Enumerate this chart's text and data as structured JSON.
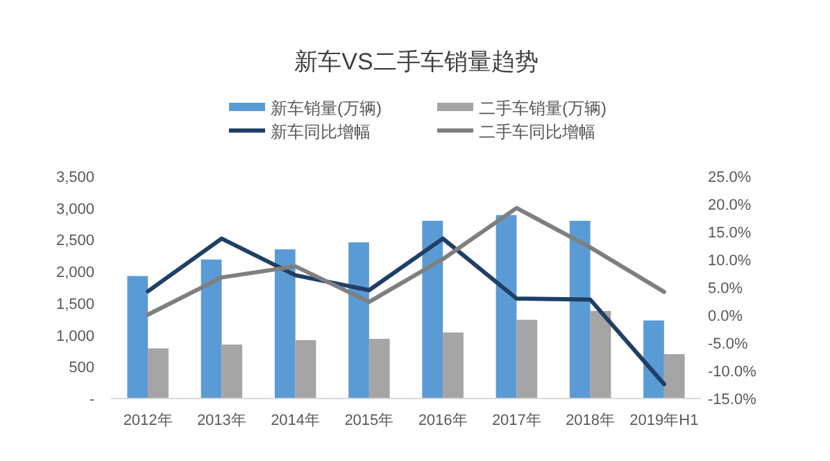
{
  "chart_data": {
    "type": "bar",
    "title": "新车VS二手车销量趋势",
    "categories": [
      "2012年",
      "2013年",
      "2014年",
      "2015年",
      "2016年",
      "2017年",
      "2018年",
      "2019年H1"
    ],
    "series": [
      {
        "name": "新车销量(万辆)",
        "axis": "y",
        "color": "#5b9bd5",
        "values": [
          1930,
          2190,
          2350,
          2460,
          2800,
          2890,
          2800,
          1230
        ]
      },
      {
        "name": "二手车销量(万辆)",
        "axis": "y",
        "color": "#a5a5a5",
        "values": [
          790,
          850,
          920,
          940,
          1040,
          1240,
          1380,
          700
        ]
      },
      {
        "name": "新车同比增幅",
        "type": "line",
        "axis": "y2",
        "color": "#1f3f66",
        "values": [
          4.3,
          13.8,
          7.2,
          4.5,
          13.8,
          3.0,
          2.8,
          -12.4
        ]
      },
      {
        "name": "二手车同比增幅",
        "type": "line",
        "axis": "y2",
        "color": "#7f7f7f",
        "values": [
          0.1,
          6.8,
          8.8,
          2.4,
          10.1,
          19.3,
          12.2,
          4.2
        ]
      }
    ],
    "ylim": [
      0,
      3500
    ],
    "yticks": [
      {
        "value": 0,
        "label": "-"
      },
      {
        "value": 500,
        "label": "500"
      },
      {
        "value": 1000,
        "label": "1,000"
      },
      {
        "value": 1500,
        "label": "1,500"
      },
      {
        "value": 2000,
        "label": "2,000"
      },
      {
        "value": 2500,
        "label": "2,500"
      },
      {
        "value": 3000,
        "label": "3,000"
      },
      {
        "value": 3500,
        "label": "3,500"
      }
    ],
    "y2lim": [
      -15,
      25
    ],
    "y2ticks": [
      {
        "value": -15,
        "label": "-15.0%"
      },
      {
        "value": -10,
        "label": "-10.0%"
      },
      {
        "value": -5,
        "label": "-5.0%"
      },
      {
        "value": 0,
        "label": "0.0%"
      },
      {
        "value": 5,
        "label": "5.0%"
      },
      {
        "value": 10,
        "label": "10.0%"
      },
      {
        "value": 15,
        "label": "15.0%"
      },
      {
        "value": 20,
        "label": "20.0%"
      },
      {
        "value": 25,
        "label": "25.0%"
      }
    ],
    "legend": "top",
    "grid": false
  }
}
